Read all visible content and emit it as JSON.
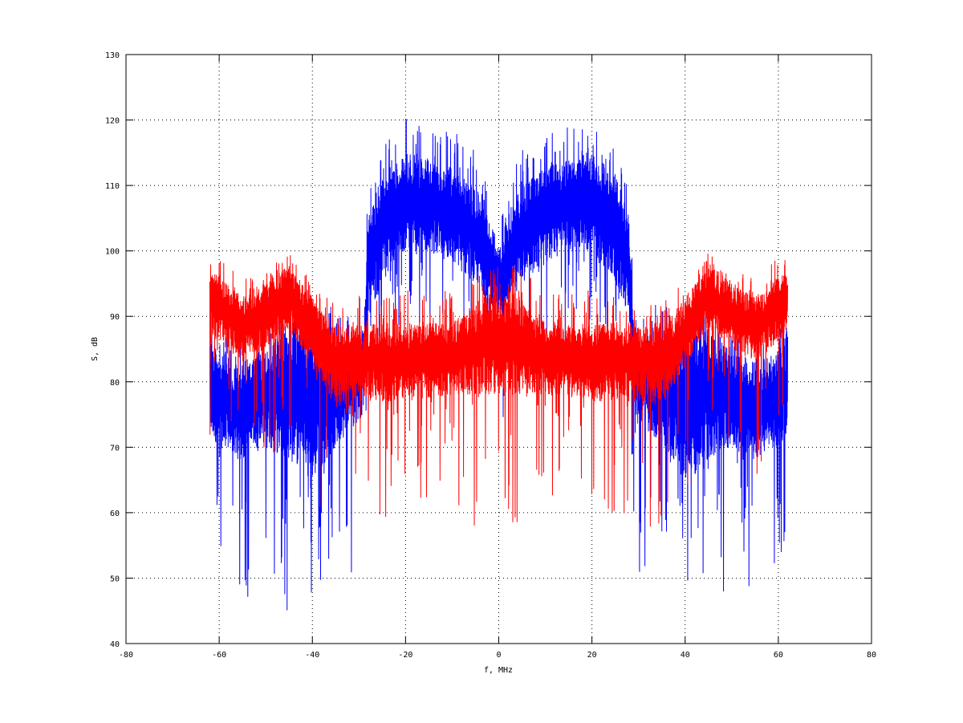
{
  "chart_data": {
    "type": "line",
    "title": "",
    "xlabel": "f, MHz",
    "ylabel": "S, dB",
    "xlim": [
      -80,
      80
    ],
    "ylim": [
      40,
      130
    ],
    "xticks": [
      -80,
      -60,
      -40,
      -20,
      0,
      20,
      40,
      60,
      80
    ],
    "yticks": [
      40,
      50,
      60,
      70,
      80,
      90,
      100,
      110,
      120,
      130
    ],
    "grid": true,
    "legend": "none",
    "note": "Dense noisy spectra; each series described by a symmetric envelope vs |f| (MHz): peak, body_hi, body_lo, dip (dB).",
    "series": [
      {
        "name": "blue",
        "color": "#0000ff",
        "x_range": [
          -62,
          62
        ],
        "envelope": {
          "abs_x": [
            0,
            2,
            5,
            10,
            15,
            20,
            25,
            28,
            29,
            35,
            40,
            45,
            50,
            55,
            60,
            62
          ],
          "peak": [
            103,
            110,
            116,
            119,
            119,
            121,
            117,
            112,
            95,
            92,
            91,
            91,
            88,
            85,
            88,
            90
          ],
          "body_hi": [
            100,
            106,
            110,
            113,
            114,
            115,
            112,
            105,
            88,
            85,
            88,
            89,
            85,
            82,
            85,
            87
          ],
          "body_lo": [
            90,
            92,
            95,
            98,
            100,
            100,
            95,
            90,
            75,
            70,
            65,
            68,
            70,
            68,
            70,
            72
          ],
          "dip": [
            70,
            75,
            80,
            85,
            85,
            88,
            85,
            70,
            47,
            55,
            45,
            44,
            50,
            45,
            48,
            55
          ]
        }
      },
      {
        "name": "red",
        "color": "#ff0000",
        "x_range": [
          -62,
          62
        ],
        "envelope": {
          "abs_x": [
            0,
            3,
            10,
            20,
            30,
            35,
            38,
            45,
            50,
            55,
            60,
            62
          ],
          "peak": [
            98,
            99,
            94,
            94,
            94,
            92,
            94,
            100,
            97,
            96,
            99,
            100
          ],
          "body_hi": [
            93,
            94,
            89,
            89,
            89,
            89,
            91,
            98,
            95,
            93,
            96,
            97
          ],
          "body_lo": [
            78,
            78,
            78,
            77,
            77,
            76,
            80,
            88,
            85,
            83,
            86,
            87
          ],
          "dip": [
            60,
            55,
            60,
            60,
            58,
            55,
            60,
            70,
            65,
            65,
            65,
            68
          ]
        }
      }
    ]
  }
}
